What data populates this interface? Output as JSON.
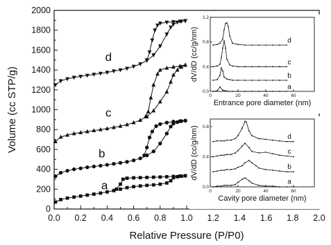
{
  "chart_data": [
    {
      "id": "main",
      "type": "scatter",
      "title": "",
      "xlabel": "Relative Pressure (P/P0)",
      "ylabel": "Volume (cc STP/g)",
      "xlim": [
        0.0,
        2.0
      ],
      "ylim": [
        0,
        2000
      ],
      "xticks": [
        "0.0",
        "0.2",
        "0.4",
        "0.6",
        "0.8",
        "1.0",
        "1.2",
        "1.4",
        "1.6",
        "1.8",
        "2.0"
      ],
      "yticks": [
        "0",
        "200",
        "400",
        "600",
        "800",
        "1000",
        "1200",
        "1400",
        "1600",
        "1800",
        "2000"
      ],
      "grid": false,
      "series": [
        {
          "name": "a",
          "marker": "square",
          "adsorption": [
            [
              0.01,
              70
            ],
            [
              0.05,
              95
            ],
            [
              0.1,
              110
            ],
            [
              0.15,
              120
            ],
            [
              0.2,
              130
            ],
            [
              0.25,
              140
            ],
            [
              0.3,
              150
            ],
            [
              0.35,
              160
            ],
            [
              0.4,
              172
            ],
            [
              0.45,
              185
            ],
            [
              0.5,
              200
            ],
            [
              0.55,
              215
            ],
            [
              0.6,
              225
            ],
            [
              0.65,
              232
            ],
            [
              0.7,
              238
            ],
            [
              0.75,
              243
            ],
            [
              0.8,
              250
            ],
            [
              0.85,
              262
            ],
            [
              0.88,
              285
            ],
            [
              0.9,
              315
            ],
            [
              0.93,
              325
            ],
            [
              0.96,
              330
            ],
            [
              0.99,
              335
            ]
          ],
          "desorption": [
            [
              0.99,
              335
            ],
            [
              0.95,
              332
            ],
            [
              0.9,
              328
            ],
            [
              0.85,
              325
            ],
            [
              0.8,
              322
            ],
            [
              0.75,
              320
            ],
            [
              0.7,
              318
            ],
            [
              0.65,
              316
            ],
            [
              0.6,
              314
            ],
            [
              0.55,
              310
            ],
            [
              0.52,
              300
            ],
            [
              0.5,
              250
            ],
            [
              0.47,
              200
            ]
          ]
        },
        {
          "name": "b",
          "marker": "circle",
          "adsorption": [
            [
              0.01,
              330
            ],
            [
              0.05,
              365
            ],
            [
              0.1,
              385
            ],
            [
              0.15,
              400
            ],
            [
              0.2,
              410
            ],
            [
              0.25,
              420
            ],
            [
              0.3,
              428
            ],
            [
              0.35,
              436
            ],
            [
              0.4,
              445
            ],
            [
              0.45,
              455
            ],
            [
              0.5,
              465
            ],
            [
              0.55,
              475
            ],
            [
              0.6,
              490
            ],
            [
              0.65,
              510
            ],
            [
              0.7,
              540
            ],
            [
              0.75,
              580
            ],
            [
              0.8,
              660
            ],
            [
              0.85,
              760
            ],
            [
              0.88,
              830
            ],
            [
              0.9,
              860
            ],
            [
              0.93,
              875
            ],
            [
              0.96,
              885
            ],
            [
              0.99,
              890
            ]
          ],
          "desorption": [
            [
              0.99,
              890
            ],
            [
              0.95,
              885
            ],
            [
              0.9,
              880
            ],
            [
              0.85,
              870
            ],
            [
              0.8,
              855
            ],
            [
              0.77,
              835
            ],
            [
              0.74,
              780
            ],
            [
              0.72,
              720
            ],
            [
              0.7,
              620
            ],
            [
              0.68,
              540
            ]
          ]
        },
        {
          "name": "c",
          "marker": "triangle-up",
          "adsorption": [
            [
              0.01,
              680
            ],
            [
              0.05,
              725
            ],
            [
              0.1,
              745
            ],
            [
              0.15,
              760
            ],
            [
              0.2,
              770
            ],
            [
              0.25,
              780
            ],
            [
              0.3,
              790
            ],
            [
              0.35,
              800
            ],
            [
              0.4,
              810
            ],
            [
              0.45,
              822
            ],
            [
              0.5,
              835
            ],
            [
              0.55,
              850
            ],
            [
              0.6,
              870
            ],
            [
              0.65,
              895
            ],
            [
              0.7,
              930
            ],
            [
              0.75,
              990
            ],
            [
              0.8,
              1080
            ],
            [
              0.85,
              1180
            ],
            [
              0.88,
              1280
            ],
            [
              0.9,
              1350
            ],
            [
              0.93,
              1400
            ],
            [
              0.96,
              1430
            ],
            [
              0.99,
              1450
            ]
          ],
          "desorption": [
            [
              0.99,
              1450
            ],
            [
              0.95,
              1440
            ],
            [
              0.9,
              1430
            ],
            [
              0.85,
              1420
            ],
            [
              0.8,
              1400
            ],
            [
              0.78,
              1360
            ],
            [
              0.75,
              1250
            ],
            [
              0.73,
              1120
            ],
            [
              0.71,
              980
            ],
            [
              0.69,
              930
            ]
          ]
        },
        {
          "name": "d",
          "marker": "triangle-down",
          "adsorption": [
            [
              0.01,
              1250
            ],
            [
              0.05,
              1290
            ],
            [
              0.1,
              1310
            ],
            [
              0.15,
              1325
            ],
            [
              0.2,
              1335
            ],
            [
              0.25,
              1345
            ],
            [
              0.3,
              1355
            ],
            [
              0.35,
              1365
            ],
            [
              0.4,
              1375
            ],
            [
              0.45,
              1388
            ],
            [
              0.5,
              1400
            ],
            [
              0.55,
              1415
            ],
            [
              0.6,
              1435
            ],
            [
              0.65,
              1460
            ],
            [
              0.7,
              1495
            ],
            [
              0.75,
              1550
            ],
            [
              0.8,
              1640
            ],
            [
              0.85,
              1760
            ],
            [
              0.88,
              1830
            ],
            [
              0.9,
              1860
            ],
            [
              0.93,
              1880
            ],
            [
              0.96,
              1890
            ],
            [
              0.99,
              1895
            ]
          ],
          "desorption": [
            [
              0.99,
              1895
            ],
            [
              0.95,
              1890
            ],
            [
              0.9,
              1885
            ],
            [
              0.85,
              1880
            ],
            [
              0.8,
              1870
            ],
            [
              0.78,
              1850
            ],
            [
              0.76,
              1800
            ],
            [
              0.74,
              1700
            ],
            [
              0.72,
              1580
            ],
            [
              0.7,
              1500
            ]
          ]
        }
      ]
    },
    {
      "id": "inset-entrance",
      "type": "line",
      "xlabel": "Entrance pore diameter (nm)",
      "ylabel": "dV/dD (cc/g/nm)",
      "xlim": [
        0,
        75
      ],
      "ylim": [
        0,
        1.2
      ],
      "xticks": [
        "0",
        "20",
        "40",
        "60"
      ],
      "yticks": [
        "0.0",
        "0.4",
        "0.8",
        "1.2"
      ],
      "grid": false,
      "series": [
        {
          "name": "a",
          "offset": 0.0,
          "x": [
            2,
            5,
            7,
            9,
            11,
            13,
            16,
            20,
            25,
            30,
            35,
            40,
            45,
            50,
            55
          ],
          "y": [
            0.0,
            0.01,
            0.07,
            0.02,
            0.01,
            0.0,
            0.0,
            0.0,
            0.0,
            0.0,
            0.0,
            0.0,
            0.0,
            0.0,
            0.0
          ]
        },
        {
          "name": "b",
          "offset": 0.18,
          "x": [
            2,
            5,
            7,
            8,
            9,
            10,
            12,
            14,
            16,
            20,
            25,
            30,
            35,
            40,
            45,
            50,
            55
          ],
          "y": [
            0.0,
            0.01,
            0.08,
            0.2,
            0.15,
            0.05,
            0.02,
            0.01,
            0.0,
            0.0,
            0.0,
            0.0,
            0.0,
            0.0,
            0.0,
            0.0,
            0.0
          ]
        },
        {
          "name": "c",
          "offset": 0.4,
          "x": [
            2,
            5,
            7,
            8,
            9,
            10,
            11,
            12,
            14,
            16,
            20,
            25,
            30,
            35,
            40,
            45,
            50,
            55
          ],
          "y": [
            0.0,
            0.01,
            0.04,
            0.15,
            0.3,
            0.42,
            0.3,
            0.12,
            0.03,
            0.01,
            0.0,
            0.0,
            0.0,
            0.0,
            0.0,
            0.0,
            0.0,
            0.0
          ]
        },
        {
          "name": "d",
          "offset": 0.75,
          "x": [
            2,
            5,
            7,
            9,
            10,
            11,
            12,
            13,
            14,
            16,
            20,
            25,
            30,
            35,
            40,
            45,
            50,
            55
          ],
          "y": [
            0.0,
            0.01,
            0.03,
            0.1,
            0.25,
            0.35,
            0.36,
            0.3,
            0.15,
            0.03,
            0.01,
            0.0,
            0.0,
            0.0,
            0.0,
            0.0,
            0.0,
            0.0
          ]
        }
      ]
    },
    {
      "id": "inset-cavity",
      "type": "line",
      "xlabel": "Cavity pore diameter (nm)",
      "ylabel": "dV/dD (cc/g/nm)",
      "xlim": [
        0,
        75
      ],
      "ylim": [
        0,
        0.9
      ],
      "xticks": [
        "0",
        "20",
        "40",
        "60"
      ],
      "yticks": [
        "0.0",
        "0.4",
        "0.8"
      ],
      "grid": false,
      "series": [
        {
          "name": "a",
          "offset": 0.0,
          "x": [
            2,
            5,
            8,
            10,
            12,
            15,
            18,
            20,
            23,
            25,
            28,
            30,
            35,
            40,
            45,
            50,
            55,
            60
          ],
          "y": [
            0.0,
            0.01,
            0.01,
            0.02,
            0.02,
            0.02,
            0.03,
            0.06,
            0.1,
            0.12,
            0.08,
            0.05,
            0.02,
            0.01,
            0.01,
            0.0,
            0.0,
            0.0
          ]
        },
        {
          "name": "b",
          "offset": 0.2,
          "x": [
            2,
            5,
            8,
            10,
            12,
            15,
            18,
            20,
            23,
            25,
            28,
            30,
            33,
            35,
            40,
            45,
            50,
            55,
            60
          ],
          "y": [
            0.0,
            0.01,
            0.02,
            0.02,
            0.03,
            0.03,
            0.04,
            0.06,
            0.08,
            0.12,
            0.15,
            0.12,
            0.08,
            0.05,
            0.03,
            0.02,
            0.01,
            0.0,
            0.0
          ]
        },
        {
          "name": "c",
          "offset": 0.4,
          "x": [
            2,
            5,
            8,
            10,
            12,
            15,
            18,
            20,
            23,
            25,
            28,
            30,
            35,
            40,
            45,
            50,
            55,
            60
          ],
          "y": [
            0.0,
            0.01,
            0.02,
            0.02,
            0.03,
            0.03,
            0.05,
            0.08,
            0.14,
            0.18,
            0.12,
            0.07,
            0.05,
            0.06,
            0.04,
            0.02,
            0.01,
            0.0
          ]
        },
        {
          "name": "d",
          "offset": 0.6,
          "x": [
            2,
            5,
            8,
            10,
            12,
            15,
            18,
            20,
            23,
            25,
            26,
            28,
            30,
            35,
            40,
            45,
            50,
            55,
            60
          ],
          "y": [
            0.0,
            0.01,
            0.01,
            0.01,
            0.02,
            0.02,
            0.04,
            0.08,
            0.18,
            0.27,
            0.26,
            0.14,
            0.08,
            0.04,
            0.03,
            0.02,
            0.01,
            0.0,
            0.0
          ]
        }
      ]
    }
  ]
}
